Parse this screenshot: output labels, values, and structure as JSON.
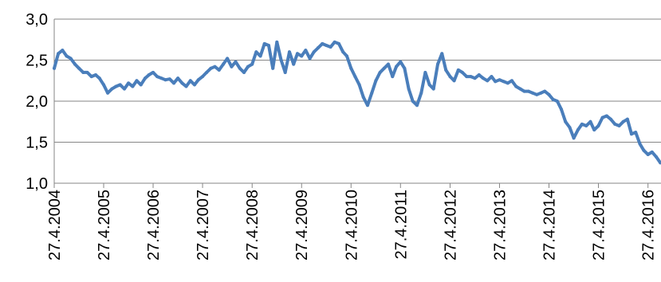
{
  "chart_data": {
    "type": "line",
    "title": "",
    "xlabel": "",
    "ylabel": "",
    "ylim": [
      1.0,
      3.0
    ],
    "y_ticks": [
      "1,0",
      "1,5",
      "2,0",
      "2,5",
      "3,0"
    ],
    "y_tick_values": [
      1.0,
      1.5,
      2.0,
      2.5,
      3.0
    ],
    "x_ticks": [
      "27.4.2004",
      "27.4.2005",
      "27.4.2006",
      "27.4.2007",
      "27.4.2008",
      "27.4.2009",
      "27.4.2010",
      "27.4.2011",
      "27.4.2012",
      "27.4.2013",
      "27.4.2014",
      "27.4.2015",
      "27.4.2016"
    ],
    "x_tick_values": [
      "2004-04-27",
      "2005-04-27",
      "2006-04-27",
      "2007-04-27",
      "2008-04-27",
      "2009-04-27",
      "2010-04-27",
      "2011-04-27",
      "2012-04-27",
      "2013-04-27",
      "2014-04-27",
      "2015-04-27",
      "2016-04-27"
    ],
    "xlim": [
      "2004-04-27",
      "2016-08-01"
    ],
    "grid": "horizontal",
    "legend": "none",
    "line_color": "#4a7ebb",
    "gridline_color": "#868686",
    "series": [
      {
        "x": [
          "2004-04-27",
          "2004-05-27",
          "2004-06-27",
          "2004-07-27",
          "2004-08-27",
          "2004-09-27",
          "2004-10-27",
          "2004-11-27",
          "2004-12-27",
          "2005-01-27",
          "2005-02-27",
          "2005-03-27",
          "2005-04-27",
          "2005-05-27",
          "2005-06-27",
          "2005-07-27",
          "2005-08-27",
          "2005-09-27",
          "2005-10-27",
          "2005-11-27",
          "2005-12-27",
          "2006-01-27",
          "2006-02-27",
          "2006-03-27",
          "2006-04-27",
          "2006-05-27",
          "2006-06-27",
          "2006-07-27",
          "2006-08-27",
          "2006-09-27",
          "2006-10-27",
          "2006-11-27",
          "2006-12-27",
          "2007-01-27",
          "2007-02-27",
          "2007-03-27",
          "2007-04-27",
          "2007-05-27",
          "2007-06-27",
          "2007-07-27",
          "2007-08-27",
          "2007-09-27",
          "2007-10-27",
          "2007-11-27",
          "2007-12-27",
          "2008-01-27",
          "2008-02-27",
          "2008-03-27",
          "2008-04-27",
          "2008-05-27",
          "2008-06-27",
          "2008-07-27",
          "2008-08-27",
          "2008-09-27",
          "2008-10-27",
          "2008-11-27",
          "2008-12-27",
          "2009-01-27",
          "2009-02-27",
          "2009-03-27",
          "2009-04-27",
          "2009-05-27",
          "2009-06-27",
          "2009-07-27",
          "2009-08-27",
          "2009-09-27",
          "2009-10-27",
          "2009-11-27",
          "2009-12-27",
          "2010-01-27",
          "2010-02-27",
          "2010-03-27",
          "2010-04-27",
          "2010-05-27",
          "2010-06-27",
          "2010-07-27",
          "2010-08-27",
          "2010-09-27",
          "2010-10-27",
          "2010-11-27",
          "2010-12-27",
          "2011-01-27",
          "2011-02-27",
          "2011-03-27",
          "2011-04-27",
          "2011-05-27",
          "2011-06-27",
          "2011-07-27",
          "2011-08-27",
          "2011-09-27",
          "2011-10-27",
          "2011-11-27",
          "2011-12-27",
          "2012-01-27",
          "2012-02-27",
          "2012-03-27",
          "2012-04-27",
          "2012-05-27",
          "2012-06-27",
          "2012-07-27",
          "2012-08-27",
          "2012-09-27",
          "2012-10-27",
          "2012-11-27",
          "2012-12-27",
          "2013-01-27",
          "2013-02-27",
          "2013-03-27",
          "2013-04-27",
          "2013-05-27",
          "2013-06-27",
          "2013-07-27",
          "2013-08-27",
          "2013-09-27",
          "2013-10-27",
          "2013-11-27",
          "2013-12-27",
          "2014-01-27",
          "2014-02-27",
          "2014-03-27",
          "2014-04-27",
          "2014-05-27",
          "2014-06-27",
          "2014-07-27",
          "2014-08-27",
          "2014-09-27",
          "2014-10-27",
          "2014-11-27",
          "2014-12-27",
          "2015-01-27",
          "2015-02-27",
          "2015-03-27",
          "2015-04-27",
          "2015-05-27",
          "2015-06-27",
          "2015-07-27",
          "2015-08-27",
          "2015-09-27",
          "2015-10-27",
          "2015-11-27",
          "2015-12-27",
          "2016-01-27",
          "2016-02-27",
          "2016-03-27",
          "2016-04-27",
          "2016-05-27",
          "2016-06-27",
          "2016-07-27"
        ],
        "values": [
          2.4,
          2.58,
          2.62,
          2.55,
          2.52,
          2.45,
          2.4,
          2.35,
          2.35,
          2.3,
          2.32,
          2.28,
          2.2,
          2.1,
          2.15,
          2.18,
          2.2,
          2.15,
          2.22,
          2.18,
          2.25,
          2.2,
          2.28,
          2.32,
          2.35,
          2.3,
          2.28,
          2.26,
          2.27,
          2.22,
          2.28,
          2.22,
          2.18,
          2.25,
          2.2,
          2.26,
          2.3,
          2.35,
          2.4,
          2.42,
          2.38,
          2.45,
          2.52,
          2.42,
          2.48,
          2.4,
          2.35,
          2.42,
          2.45,
          2.6,
          2.55,
          2.7,
          2.68,
          2.4,
          2.72,
          2.5,
          2.35,
          2.6,
          2.45,
          2.58,
          2.55,
          2.62,
          2.52,
          2.6,
          2.65,
          2.7,
          2.68,
          2.66,
          2.72,
          2.7,
          2.6,
          2.55,
          2.4,
          2.3,
          2.2,
          2.05,
          1.95,
          2.1,
          2.25,
          2.35,
          2.4,
          2.45,
          2.3,
          2.42,
          2.48,
          2.4,
          2.15,
          2.0,
          1.95,
          2.1,
          2.35,
          2.2,
          2.15,
          2.45,
          2.58,
          2.38,
          2.3,
          2.25,
          2.38,
          2.35,
          2.3,
          2.3,
          2.28,
          2.32,
          2.28,
          2.25,
          2.3,
          2.24,
          2.26,
          2.24,
          2.22,
          2.25,
          2.18,
          2.15,
          2.12,
          2.12,
          2.1,
          2.08,
          2.1,
          2.12,
          2.08,
          2.02,
          2.0,
          1.9,
          1.75,
          1.68,
          1.55,
          1.65,
          1.72,
          1.7,
          1.75,
          1.65,
          1.7,
          1.8,
          1.82,
          1.78,
          1.72,
          1.7,
          1.75,
          1.78,
          1.6,
          1.62,
          1.48,
          1.4,
          1.35,
          1.38,
          1.32,
          1.25
        ]
      }
    ]
  }
}
